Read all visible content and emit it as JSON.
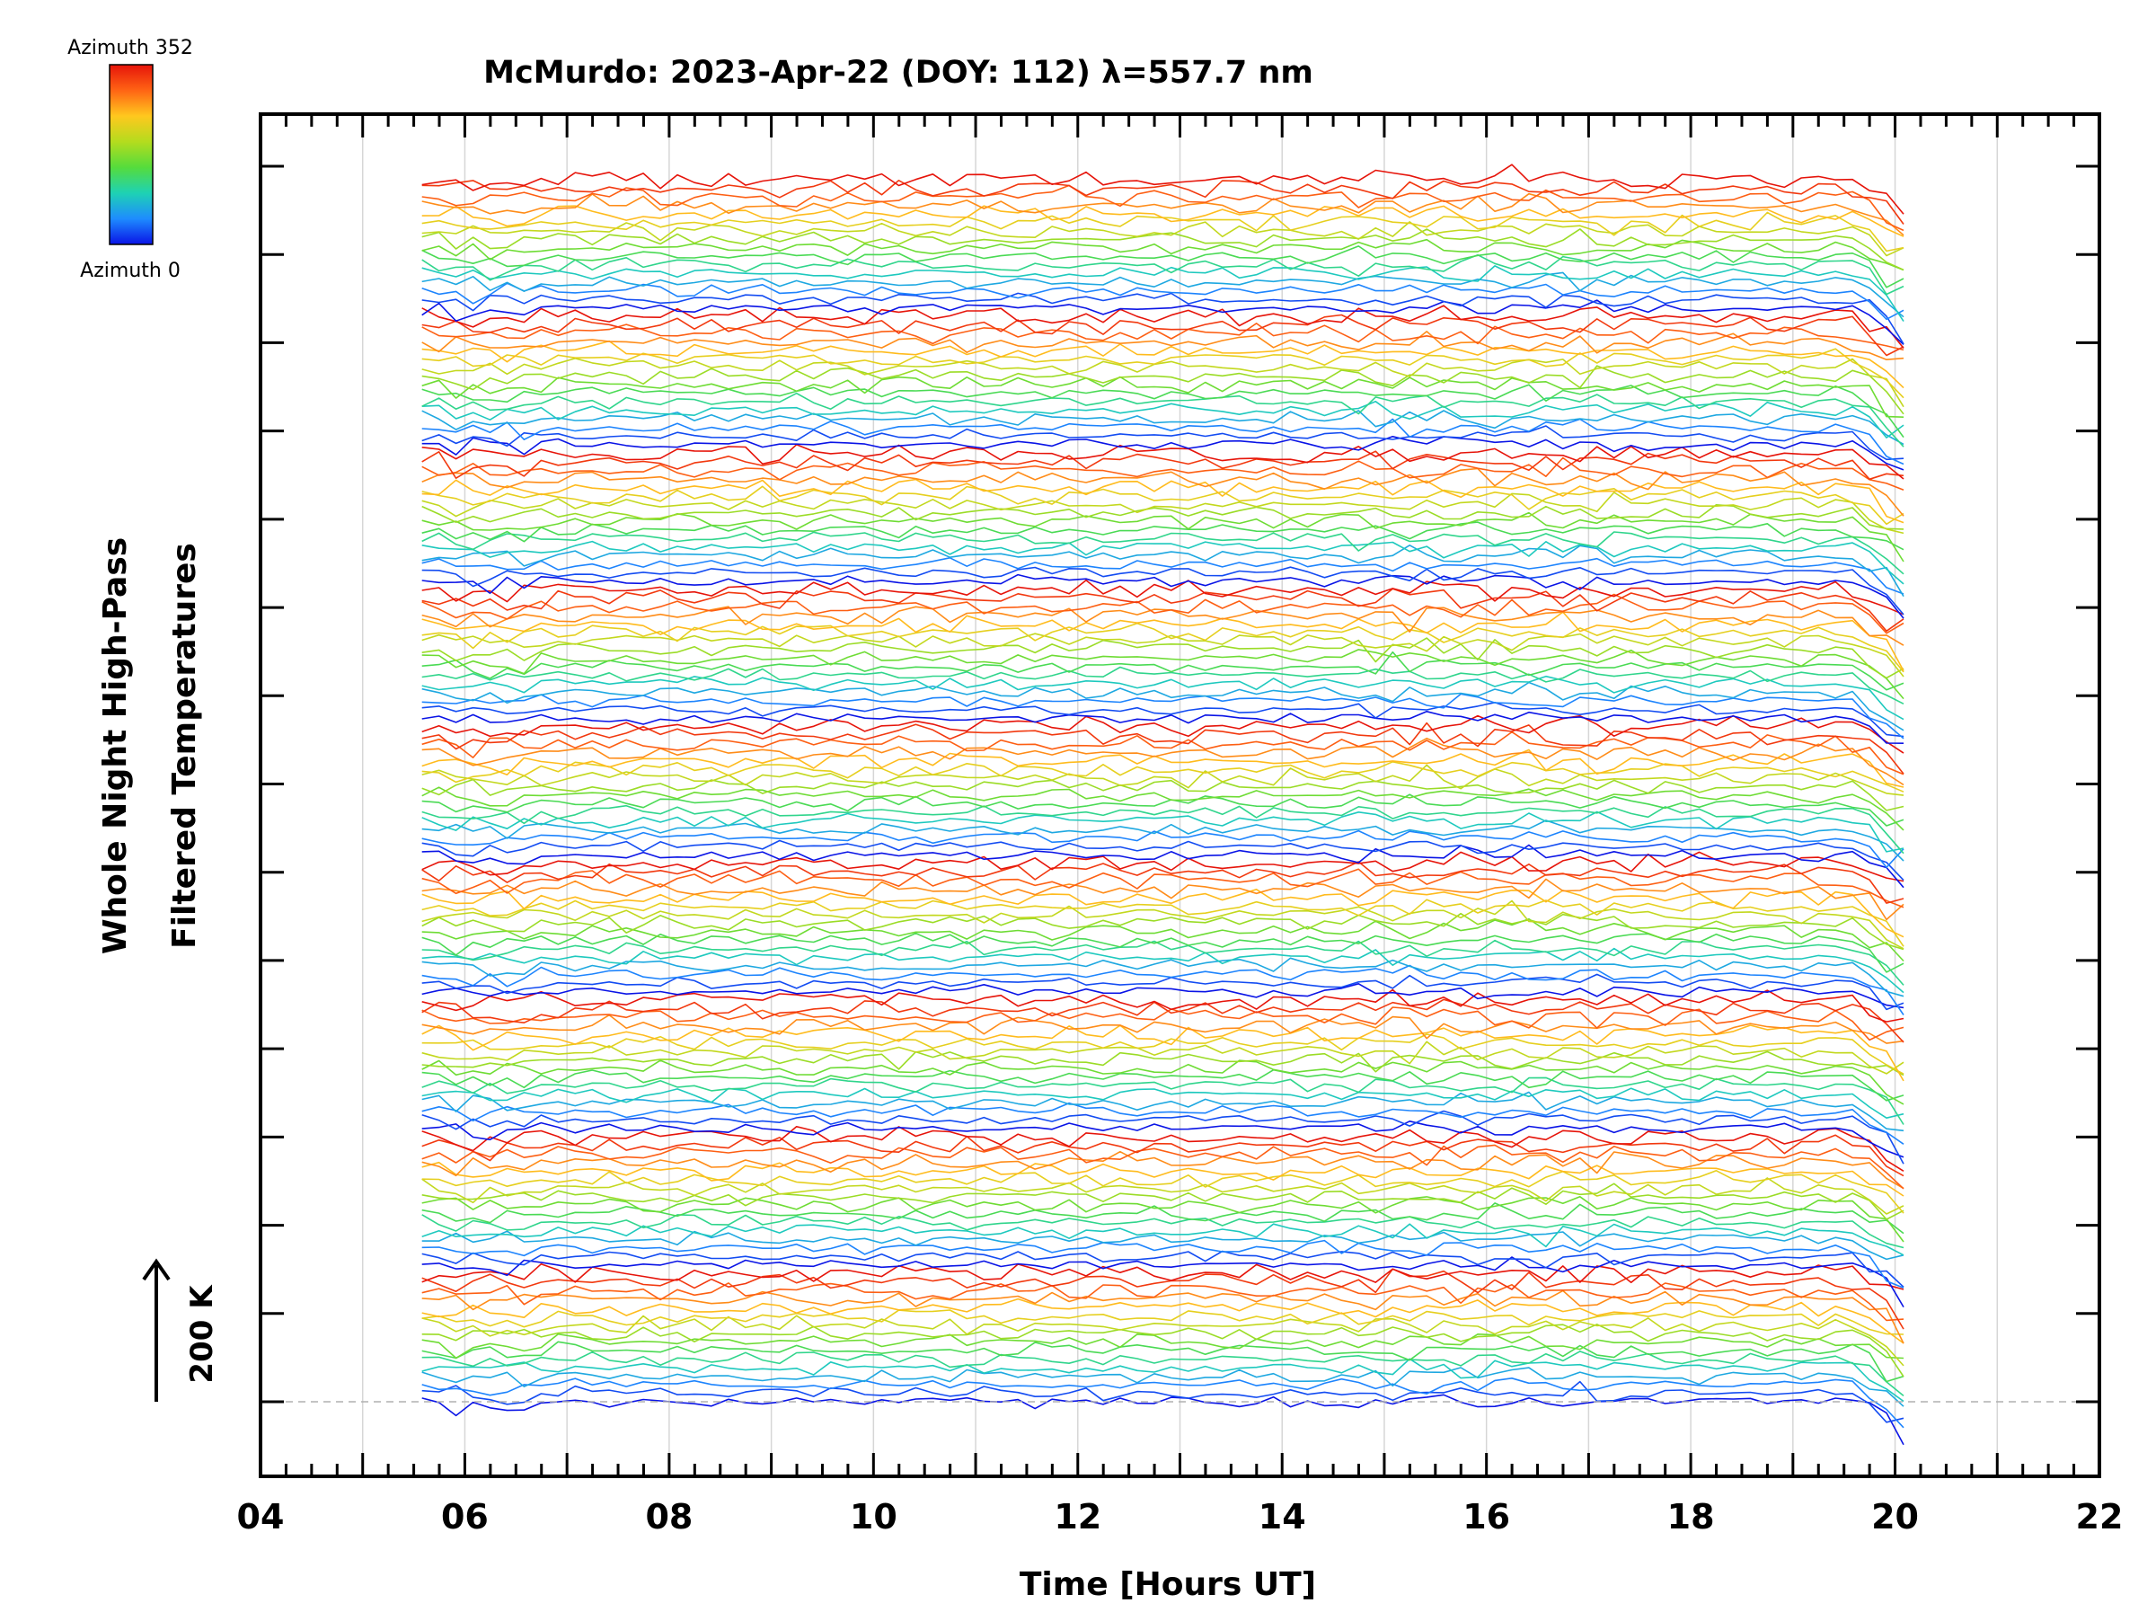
{
  "chart_data": {
    "type": "line",
    "title": "McMurdo: 2023-Apr-22 (DOY: 112) λ=557.7 nm",
    "xlabel": "Time [Hours UT]",
    "ylabel_line1": "Whole Night High-Pass",
    "ylabel_line2": "Filtered Temperatures",
    "scale_label": "200 K",
    "colorbar": {
      "top_label": "Azimuth 352",
      "bottom_label": "Azimuth 0",
      "stops": [
        "#0a14e6",
        "#1e8cff",
        "#1ed2b4",
        "#55dc3c",
        "#b4dc1e",
        "#ffc81e",
        "#ff6414",
        "#e6140a"
      ]
    },
    "xlim": [
      4,
      22
    ],
    "x_ticks": [
      "04",
      "06",
      "08",
      "10",
      "12",
      "14",
      "16",
      "18",
      "20",
      "22"
    ],
    "x_tick_values": [
      4,
      6,
      8,
      10,
      12,
      14,
      16,
      18,
      20,
      22
    ],
    "y_tick_count": 15,
    "data_time_range": [
      5.58,
      20.17
    ],
    "sample_interval_hours": 0.1667,
    "n_traces": 144,
    "traces_per_group": 16,
    "n_groups": 9,
    "azimuth_step_deg": 22,
    "baseline_dashed": true
  }
}
